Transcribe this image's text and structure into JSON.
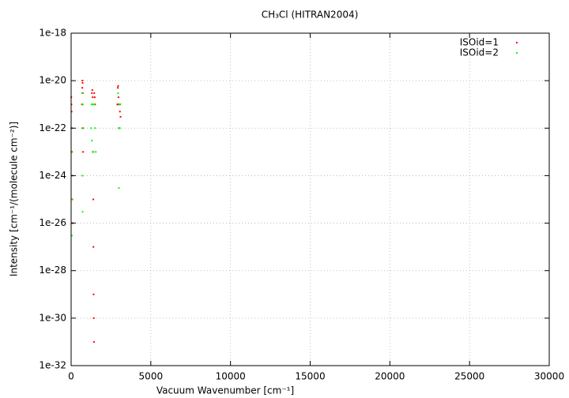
{
  "chart_data": {
    "type": "scatter",
    "title": "CH₃Cl (HITRAN2004)",
    "x_label": "Vacuum Wavenumber [cm⁻¹]",
    "y_label": "Intensity [cm⁻¹/(molecule cm⁻²)]",
    "xlim": [
      0,
      30000
    ],
    "xticks": [
      0,
      5000,
      10000,
      15000,
      20000,
      25000,
      30000
    ],
    "ylim": [
      1e-32,
      1e-18
    ],
    "yticks": [
      {
        "value": 1e-32,
        "label": "1e-32"
      },
      {
        "value": 1e-30,
        "label": "1e-30"
      },
      {
        "value": 1e-28,
        "label": "1e-28"
      },
      {
        "value": 1e-26,
        "label": "1e-26"
      },
      {
        "value": 1e-24,
        "label": "1e-24"
      },
      {
        "value": 1e-22,
        "label": "1e-22"
      },
      {
        "value": 1e-20,
        "label": "1e-20"
      },
      {
        "value": 1e-18,
        "label": "1e-18"
      }
    ],
    "y_scale": "log",
    "grid": true,
    "legend": "upper right",
    "series": [
      {
        "name": "ISOid=1",
        "color": "#ff0000",
        "x": [
          10,
          20,
          30,
          40,
          50,
          60,
          70,
          80,
          680,
          700,
          710,
          720,
          730,
          740,
          750,
          1300,
          1330,
          1350,
          1370,
          1390,
          1400,
          1410,
          1420,
          1430,
          1450,
          1480,
          1500,
          2900,
          2930,
          2950,
          2970,
          3000,
          3030,
          3060,
          3080,
          3100
        ],
        "values": [
          2e-21,
          1e-21,
          5e-22,
          1e-22,
          1e-23,
          1e-24,
          1e-25,
          1e-26,
          1e-21,
          5e-21,
          1e-20,
          8e-21,
          3e-21,
          1e-22,
          1e-23,
          3e-21,
          4e-21,
          2e-21,
          1e-23,
          1e-25,
          1e-27,
          1e-29,
          1e-30,
          1e-31,
          3e-21,
          2e-21,
          1e-21,
          1e-21,
          5e-21,
          6e-21,
          2e-21,
          1e-21,
          1e-22,
          5e-22,
          1e-21,
          3e-22
        ]
      },
      {
        "name": "ISOid=2",
        "color": "#00ff00",
        "x": [
          5,
          15,
          25,
          35,
          45,
          690,
          700,
          710,
          720,
          730,
          1250,
          1280,
          1300,
          1350,
          1400,
          1450,
          1500,
          1550,
          2950,
          2980,
          3000,
          3030,
          3060,
          3090
        ],
        "values": [
          1e-22,
          1e-23,
          1e-24,
          1e-25,
          3e-27,
          3e-21,
          1e-22,
          1e-24,
          3e-26,
          1e-21,
          1e-22,
          1e-21,
          3e-23,
          1e-21,
          1e-23,
          1e-21,
          1e-22,
          1e-23,
          3e-21,
          1e-22,
          3e-25,
          1e-21,
          1e-22,
          1e-21
        ]
      }
    ]
  }
}
